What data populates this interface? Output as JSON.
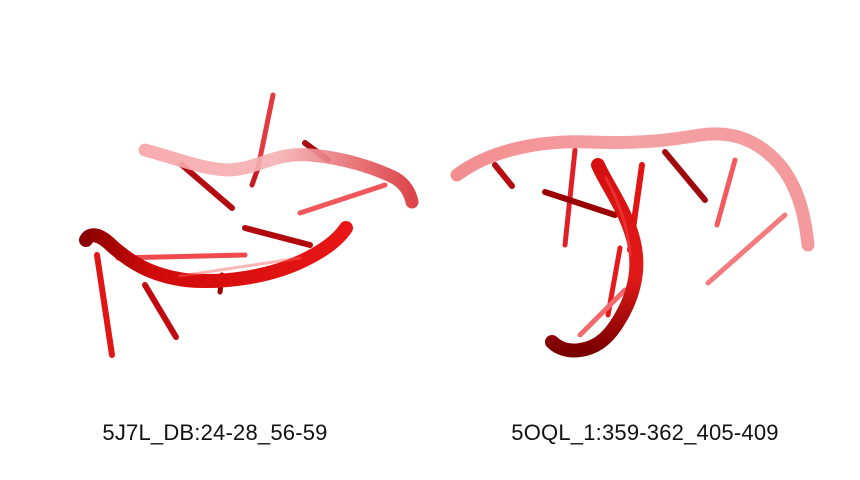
{
  "panels": [
    {
      "id": "5J7L_DB",
      "label": "5J7L_DB:24-28_56-59"
    },
    {
      "id": "5OQL_1",
      "label": "5OQL_1:359-362_405-409"
    }
  ],
  "colors": {
    "strand_back": "#f2878a",
    "strand_front": "#e01010",
    "strand_dark": "#9a0000"
  }
}
